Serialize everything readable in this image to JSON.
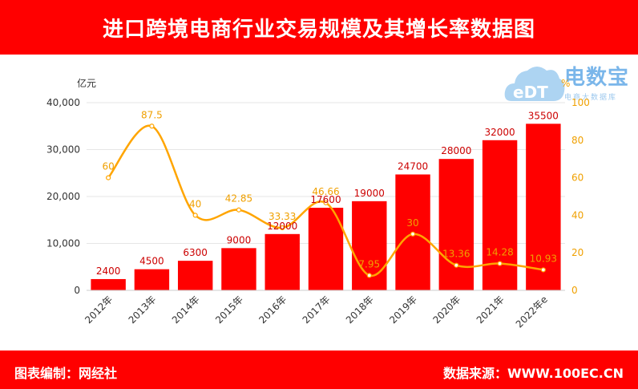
{
  "header": {
    "title": "进口跨境电商行业交易规模及其增长率数据图"
  },
  "footer": {
    "left": "图表编制：网经社",
    "right": "数据来源：WWW.100EC.CN"
  },
  "logo": {
    "brand": "电数宝",
    "tagline": "电商大数据库",
    "letters": "eDT"
  },
  "colors": {
    "bar": "#ff0000",
    "line": "#ffa500",
    "banner": "#ff0000"
  },
  "chart_data": {
    "type": "bar",
    "categories": [
      "2012年",
      "2013年",
      "2014年",
      "2015年",
      "2016年",
      "2017年",
      "2018年",
      "2019年",
      "2020年",
      "2021年",
      "2022年e"
    ],
    "y_unit": "亿元",
    "y2_unit": "%",
    "ylim": [
      0,
      40000
    ],
    "y_ticks": [
      "0",
      "10,000",
      "20,000",
      "30,000",
      "40,000"
    ],
    "y2lim": [
      0,
      100
    ],
    "y2_ticks": [
      "0",
      "20",
      "40",
      "60",
      "80",
      "100"
    ],
    "grid": "horizontal",
    "series": [
      {
        "type": "bar",
        "values": [
          2400,
          4500,
          6300,
          9000,
          12000,
          17600,
          19000,
          24700,
          28000,
          32000,
          35500
        ],
        "value_labels": [
          "2400",
          "4500",
          "6300",
          "9000",
          "12000",
          "17600",
          "19000",
          "24700",
          "28000",
          "32000",
          "35500"
        ]
      },
      {
        "type": "line",
        "axis": "right",
        "smooth": true,
        "values": [
          60,
          87.5,
          40,
          42.85,
          33.33,
          46.66,
          7.95,
          30,
          13.36,
          14.28,
          10.93
        ],
        "value_labels": [
          "60",
          "87.5",
          "40",
          "42.85",
          "33.33",
          "46.66",
          "7.95",
          "30",
          "13.36",
          "14.28",
          "10.93"
        ]
      }
    ]
  }
}
